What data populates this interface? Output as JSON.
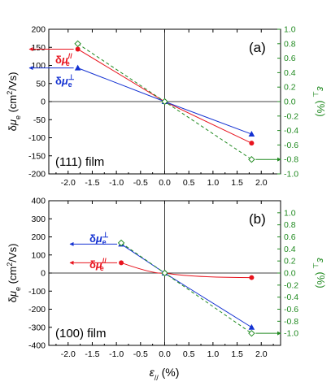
{
  "chart_data": [
    {
      "type": "line",
      "panel_label": "(a)",
      "sample_label": "(111) film",
      "ylabel": "δμₑ (cm²/Vs)",
      "y2label": "ε⊥ (%)",
      "xlim": [
        -2.4,
        2.4
      ],
      "ylim": [
        -200,
        200
      ],
      "y2lim": [
        -1.0,
        1.0
      ],
      "xticks": [
        "-2.0",
        "-1.5",
        "-1.0",
        "-0.5",
        "0.0",
        "0.5",
        "1.0",
        "1.5",
        "2.0"
      ],
      "xtick_values": [
        -2.0,
        -1.5,
        -1.0,
        -0.5,
        0.0,
        0.5,
        1.0,
        1.5,
        2.0
      ],
      "yticks": [
        "200",
        "150",
        "100",
        "50",
        "0",
        "-50",
        "-100",
        "-150",
        "-200"
      ],
      "ytick_values": [
        200,
        150,
        100,
        50,
        0,
        -50,
        -100,
        -150,
        -200
      ],
      "y2ticks": [
        "1.0",
        "0.8",
        "0.6",
        "0.4",
        "0.2",
        "0.0",
        "-0.2",
        "-0.4",
        "-0.6",
        "-0.8",
        "-1.0"
      ],
      "y2tick_values": [
        1.0,
        0.8,
        0.6,
        0.4,
        0.2,
        0.0,
        -0.2,
        -0.4,
        -0.6,
        -0.8,
        -1.0
      ],
      "series": [
        {
          "name": "δμ∥e",
          "color": "#e8141e",
          "marker": "circle",
          "axis": "left",
          "x": [
            -1.8,
            0.0,
            1.8
          ],
          "y": [
            145,
            0,
            -115
          ],
          "label_main": "δμ",
          "label_sup": "//",
          "label_sub": "e"
        },
        {
          "name": "δμ⊥e",
          "color": "#1432d2",
          "marker": "triangle",
          "axis": "left",
          "x": [
            -1.8,
            0.0,
            1.8
          ],
          "y": [
            93,
            0,
            -90
          ],
          "label_main": "δμ",
          "label_sup": "⊥",
          "label_sub": "e"
        },
        {
          "name": "ε⊥",
          "color": "#228b22",
          "marker": "diamond",
          "dashed": true,
          "axis": "right",
          "x": [
            -1.8,
            0.0,
            1.8
          ],
          "y": [
            0.8,
            0.0,
            -0.8
          ]
        }
      ]
    },
    {
      "type": "line",
      "panel_label": "(b)",
      "sample_label": "(100) film",
      "ylabel": "δμₑ (cm²/Vs)",
      "y2label": "ε⊥ (%)",
      "xlabel": "ε// (%)",
      "xlim": [
        -2.4,
        2.4
      ],
      "ylim": [
        -400,
        400
      ],
      "y2lim": [
        -1.2,
        1.2
      ],
      "xticks": [
        "-2.0",
        "-1.5",
        "-1.0",
        "-0.5",
        "0.0",
        "0.5",
        "1.0",
        "1.5",
        "2.0"
      ],
      "xtick_values": [
        -2.0,
        -1.5,
        -1.0,
        -0.5,
        0.0,
        0.5,
        1.0,
        1.5,
        2.0
      ],
      "yticks": [
        "400",
        "300",
        "200",
        "100",
        "0",
        "-100",
        "-200",
        "-300",
        "-400"
      ],
      "ytick_values": [
        400,
        300,
        200,
        100,
        0,
        -100,
        -200,
        -300,
        -400
      ],
      "y2ticks": [
        "1.0",
        "0.8",
        "0.6",
        "0.4",
        "0.2",
        "0.0",
        "-0.2",
        "-0.4",
        "-0.6",
        "-0.8",
        "-1.0"
      ],
      "y2tick_values": [
        1.0,
        0.8,
        0.6,
        0.4,
        0.2,
        0.0,
        -0.2,
        -0.4,
        -0.6,
        -0.8,
        -1.0
      ],
      "series": [
        {
          "name": "δμ∥e",
          "color": "#e8141e",
          "marker": "circle",
          "axis": "left",
          "x": [
            -0.9,
            0.0,
            1.8
          ],
          "y": [
            57,
            0,
            -25
          ],
          "curved": true,
          "label_main": "δμ",
          "label_sup": "//",
          "label_sub": "e"
        },
        {
          "name": "δμ⊥e",
          "color": "#1432d2",
          "marker": "triangle",
          "axis": "left",
          "x": [
            -0.9,
            0.0,
            1.8
          ],
          "y": [
            160,
            0,
            -300
          ],
          "label_main": "δμ",
          "label_sup": "⊥",
          "label_sub": "e"
        },
        {
          "name": "ε⊥",
          "color": "#228b22",
          "marker": "diamond",
          "dashed": true,
          "axis": "right",
          "x": [
            -0.9,
            0.0,
            1.8
          ],
          "y": [
            0.5,
            0.0,
            -1.0
          ]
        }
      ]
    }
  ]
}
